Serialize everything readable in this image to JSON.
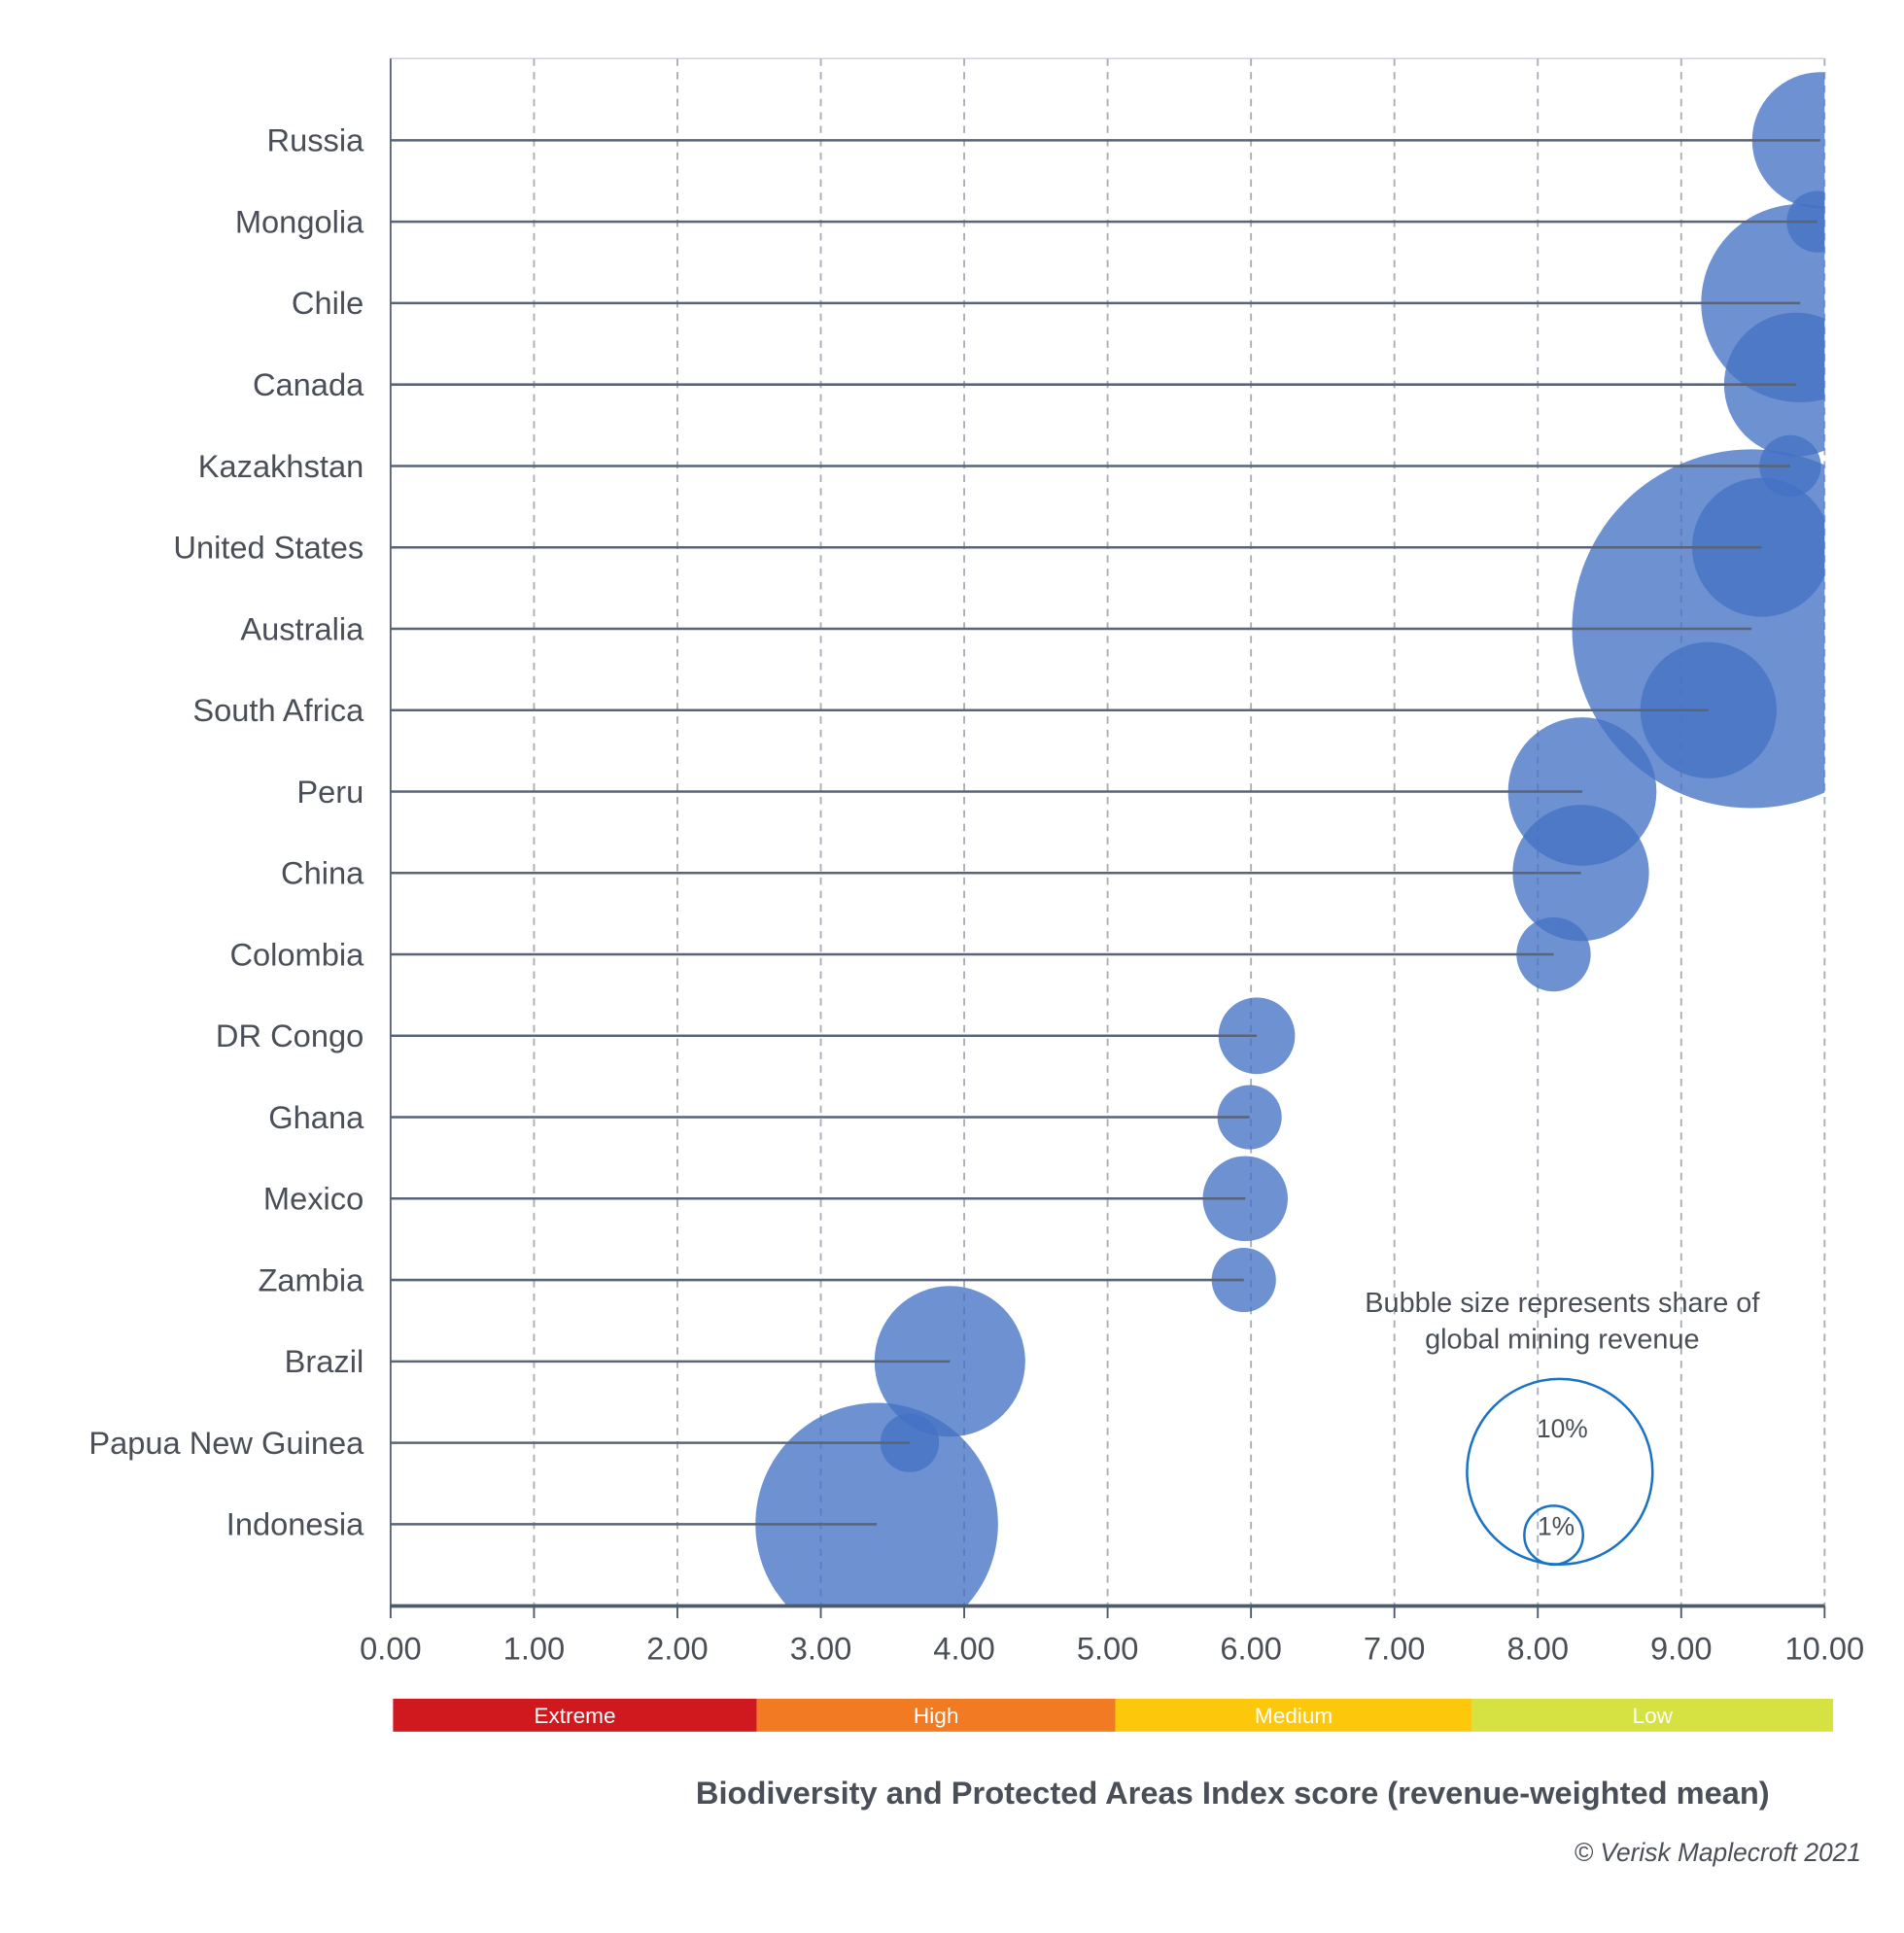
{
  "chart_data": {
    "type": "bubble",
    "xlabel": "Biodiversity and Protected Areas Index score (revenue-weighted mean)",
    "xlim": [
      0,
      10
    ],
    "xticks": [
      "0.00",
      "1.00",
      "2.00",
      "3.00",
      "4.00",
      "5.00",
      "6.00",
      "7.00",
      "8.00",
      "9.00",
      "10.00"
    ],
    "grid": "vertical dashed",
    "categories": [
      "Russia",
      "Mongolia",
      "Chile",
      "Canada",
      "Kazakhstan",
      "United States",
      "Australia",
      "South Africa",
      "Peru",
      "China",
      "Colombia",
      "DR Congo",
      "Ghana",
      "Mexico",
      "Zambia",
      "Brazil",
      "Papua New Guinea",
      "Indonesia"
    ],
    "values": [
      9.97,
      9.95,
      9.83,
      9.8,
      9.76,
      9.56,
      9.49,
      9.19,
      8.31,
      8.3,
      8.11,
      6.04,
      5.99,
      5.96,
      5.95,
      3.9,
      3.62,
      3.39
    ],
    "bubble_share_pct": [
      5.4,
      1.1,
      11.4,
      6.0,
      1.1,
      5.6,
      37.4,
      5.4,
      6.4,
      5.4,
      1.6,
      1.7,
      1.2,
      2.1,
      1.2,
      6.6,
      1.0,
      17.1
    ],
    "bubble_color": "#4472C4",
    "line_color": "#5a6478",
    "risk_bands": [
      {
        "label": "Extreme",
        "color": "#d0191f"
      },
      {
        "label": "High",
        "color": "#f27a22"
      },
      {
        "label": "Medium",
        "color": "#fdc70c"
      },
      {
        "label": "Low",
        "color": "#d6e142"
      }
    ],
    "size_legend": {
      "note_line1": "Bubble size represents share of",
      "note_line2": "global mining revenue",
      "items": [
        {
          "label": "10%",
          "value": 10
        },
        {
          "label": "1%",
          "value": 1
        }
      ],
      "color": "#1a72c4"
    },
    "copyright": "© Verisk Maplecroft 2021"
  }
}
